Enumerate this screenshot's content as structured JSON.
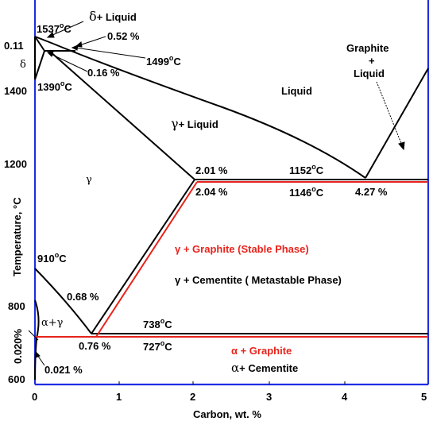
{
  "diagram": {
    "x_axis_label": "Carbon, wt. %",
    "y_axis_label": "Temperature, °C",
    "x_ticks": [
      "0",
      "1",
      "2",
      "3",
      "4",
      "5"
    ],
    "y_ticks": [
      "600",
      "800",
      "1200",
      "1400"
    ],
    "y_side_labels": [
      "0.11",
      "0.020%"
    ],
    "phase_labels": {
      "delta": "δ",
      "delta_liquid_sym": "δ",
      "delta_liquid_text": "+ Liquid",
      "gamma": "γ",
      "gamma_liquid_sym": "γ",
      "gamma_liquid_text": "+ Liquid",
      "liquid": "Liquid",
      "graphite_liquid_1": "Graphite",
      "graphite_liquid_2": "+",
      "graphite_liquid_3": "Liquid",
      "alpha_gamma": "α+γ",
      "gamma_graphite": "γ + Graphite (Stable Phase)",
      "gamma_cementite": "γ + Cementite ( Metastable Phase)",
      "alpha_graphite": "α + Graphite",
      "alpha_cementite_sym": "α",
      "alpha_cementite_text": "+ Cementite"
    },
    "points": {
      "t1537": "1537",
      "p052": "0.52 %",
      "t1499": "1499",
      "p016": "0.16 %",
      "t1390": "1390",
      "p201": "2.01 %",
      "t1152": "1152",
      "p204": "2.04 %",
      "t1146": "1146",
      "p427": "4.27 %",
      "t910": "910",
      "p068": "0.68 %",
      "t738": "738",
      "p076": "0.76 %",
      "t727": "727",
      "p0021": "0.021 %",
      "degree_symbol": "o",
      "celsius_letter": "C"
    },
    "colors": {
      "axis": "#1f2ee0",
      "stable_lines": "#e8231c",
      "metastable_lines": "#000000"
    },
    "carbon_range_wt_pct": [
      0,
      5
    ],
    "temperature_range_c": [
      600,
      1600
    ]
  }
}
